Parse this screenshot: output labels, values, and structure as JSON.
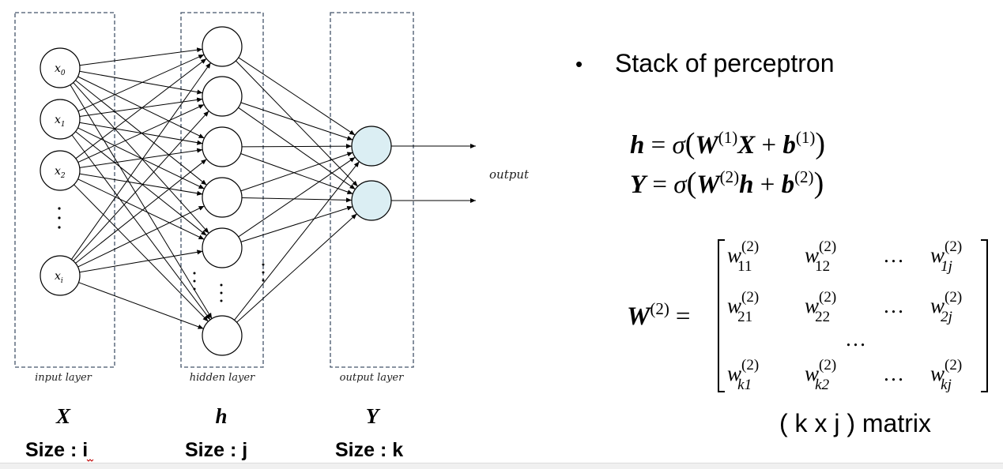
{
  "diagram": {
    "layer_labels": [
      "input layer",
      "hidden layer",
      "output layer"
    ],
    "input_nodes": [
      "x",
      "x",
      "x",
      "x"
    ],
    "input_subscripts": [
      "0",
      "1",
      "2",
      "i"
    ],
    "output_label": "output"
  },
  "variables": [
    {
      "symbol": "X",
      "size_label": "Size : ",
      "size_value": "i"
    },
    {
      "symbol": "h",
      "size_label": "Size : ",
      "size_value": "j"
    },
    {
      "symbol": "Y",
      "size_label": "Size : ",
      "size_value": "k"
    }
  ],
  "bullet": {
    "marker": "•",
    "text": "Stack of perceptron"
  },
  "equations": {
    "eq1": {
      "lhs": "h",
      "eq": " = ",
      "sigma": "σ",
      "lp": "(",
      "w": "W",
      "sup": "(1)",
      "var": "X",
      "plus": " + ",
      "b": "b",
      "bsup": "(1)",
      "rp": ")"
    },
    "eq2": {
      "lhs": "Y",
      "eq": " = ",
      "sigma": "σ",
      "lp": "(",
      "w": "W",
      "sup": "(2)",
      "var": "h",
      "plus": " + ",
      "b": "b",
      "bsup": "(2)",
      "rp": ")"
    }
  },
  "matrix": {
    "lhs": "W",
    "lhs_sup": "(2)",
    "eq": "=",
    "entry_base": "w",
    "entry_sup": "(2)",
    "ellipsis": "…",
    "rows": [
      [
        "11",
        "12",
        "…",
        "1j"
      ],
      [
        "21",
        "22",
        "…",
        "2j"
      ],
      [
        "k1",
        "k2",
        "…",
        "kj"
      ]
    ],
    "middle_ellipsis": "…",
    "caption": "( k x j ) matrix"
  }
}
